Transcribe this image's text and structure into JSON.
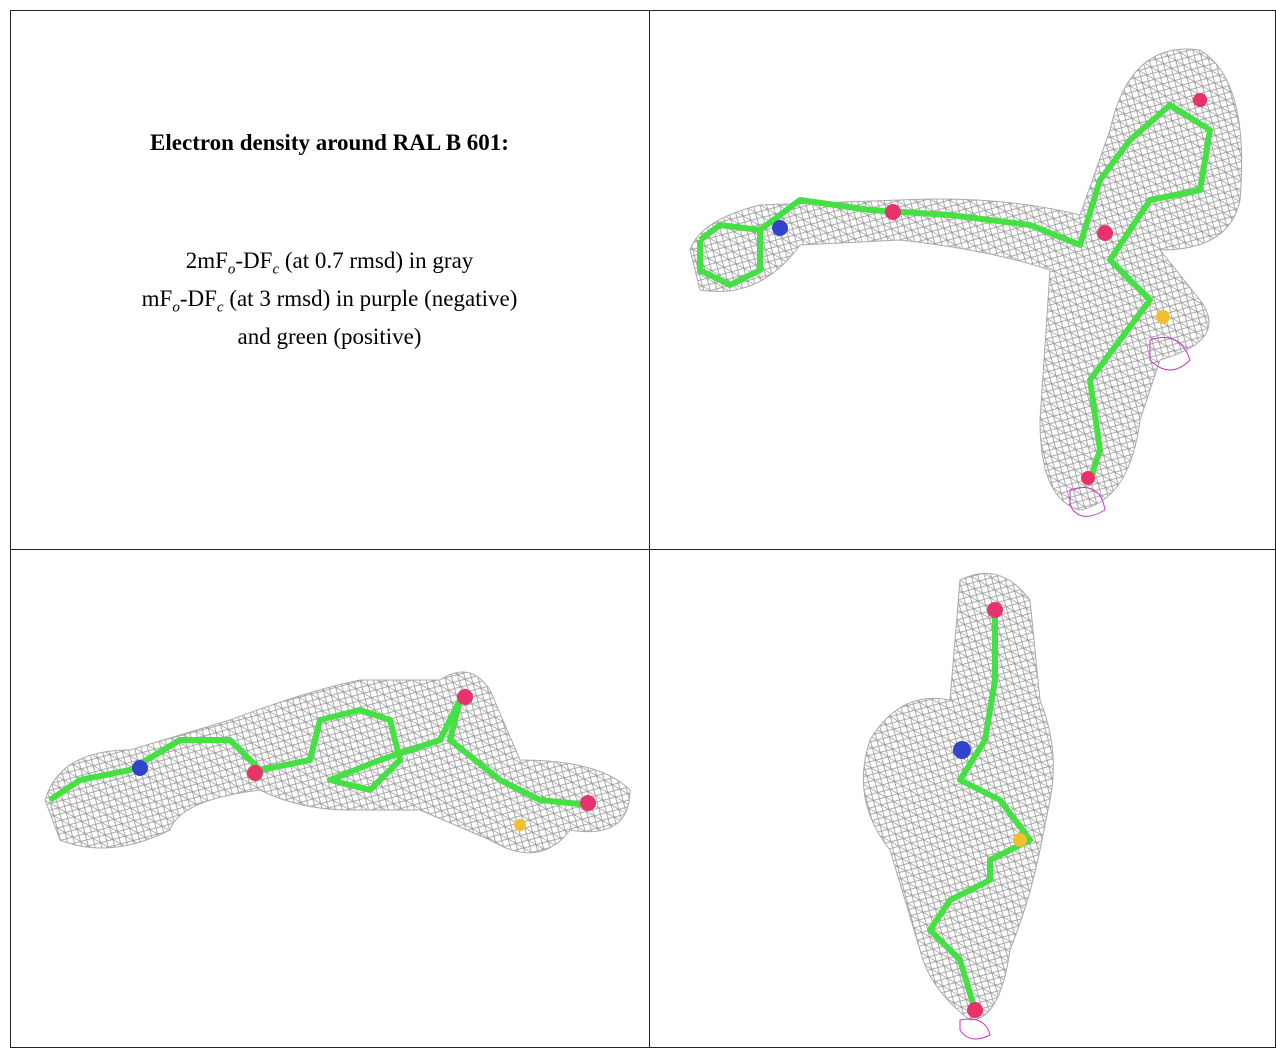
{
  "caption": {
    "title": "Electron density around RAL B 601:",
    "lines": [
      [
        "2mF",
        "o",
        "-DF",
        "c",
        " (at 0.7 rmsd) in gray"
      ],
      [
        "mF",
        "o",
        "-DF",
        "c",
        " (at 3 rmsd) in purple (negative)"
      ],
      [
        "and green (positive)"
      ]
    ]
  }
}
